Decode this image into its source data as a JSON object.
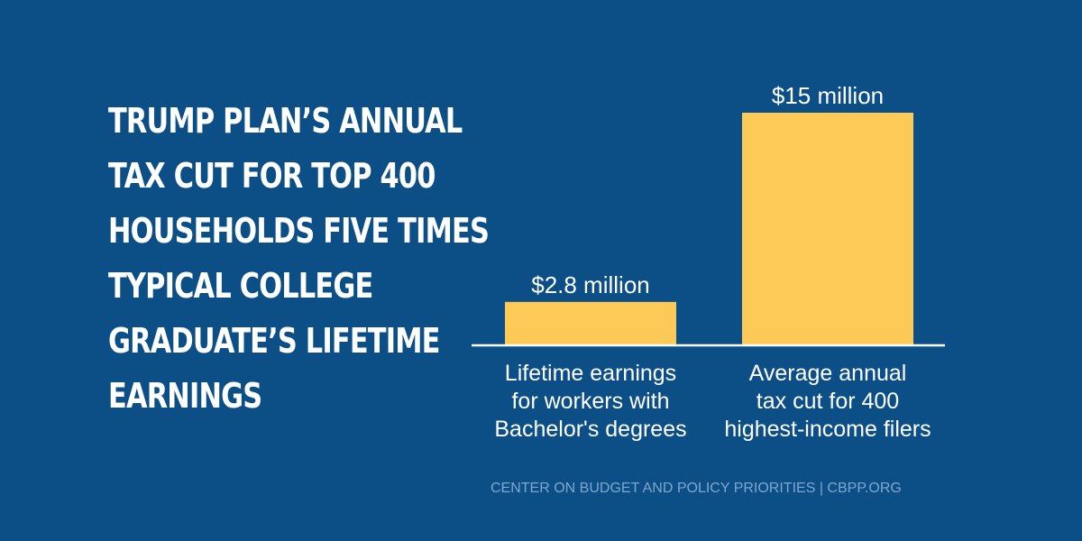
{
  "headline": {
    "lines": [
      "Trump Plan’s Annual",
      "Tax Cut For Top 400",
      "Households Five Times",
      "Typical College",
      "Graduate’s Lifetime",
      "Earnings"
    ]
  },
  "source": "CENTER ON BUDGET AND POLICY PRIORITIES | CBPP.ORG",
  "colors": {
    "background": "#0c4f87",
    "bar": "#fdca57",
    "axis": "#ffffff",
    "text": "#ffffff",
    "source_text": "#7fa6cf"
  },
  "chart_data": {
    "type": "bar",
    "title": "",
    "xlabel": "",
    "ylabel": "",
    "ylim": [
      0,
      15
    ],
    "grid": false,
    "unit": "million US dollars",
    "categories": [
      [
        "Lifetime earnings",
        "for workers with",
        "Bachelor's degrees"
      ],
      [
        "Average annual",
        "tax cut for 400",
        "highest-income filers"
      ]
    ],
    "values": [
      2.8,
      15
    ],
    "data_labels": [
      "$2.8 million",
      "$15 million"
    ]
  }
}
